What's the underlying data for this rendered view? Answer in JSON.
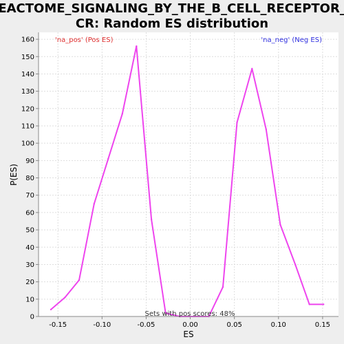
{
  "chart_data": {
    "type": "line",
    "title_lines": [
      "REACTOME_SIGNALING_BY_THE_B_CELL_RECEPTOR_B",
      "CR: Random ES distribution"
    ],
    "xlabel": "ES",
    "ylabel": "P(ES)",
    "xlim": [
      -0.172,
      0.168
    ],
    "ylim": [
      0,
      164
    ],
    "x_ticks": [
      -0.15,
      -0.1,
      -0.05,
      0.0,
      0.05,
      0.1,
      0.15
    ],
    "x_tick_labels": [
      "-0.15",
      "-0.10",
      "-0.05",
      "0.00",
      "0.05",
      "0.10",
      "0.15"
    ],
    "y_ticks": [
      0,
      10,
      20,
      30,
      40,
      50,
      60,
      70,
      80,
      90,
      100,
      110,
      120,
      130,
      140,
      150,
      160
    ],
    "grid": true,
    "legend": [
      {
        "label": "'na_pos' (Pos ES)",
        "color": "#e03030",
        "placement": "top-left"
      },
      {
        "label": "'na_neg' (Neg ES)",
        "color": "#3030e0",
        "placement": "top-right"
      }
    ],
    "annotation": "Sets with pos scores: 48%",
    "series": [
      {
        "color": "#ee44ee",
        "x": [
          -0.158,
          -0.142,
          -0.126,
          -0.109,
          -0.093,
          -0.077,
          -0.061,
          -0.044,
          -0.028,
          -0.012,
          0.004,
          0.021,
          0.037,
          0.053,
          0.07,
          0.086,
          0.102,
          0.119,
          0.135,
          0.151
        ],
        "y": [
          4,
          11,
          21,
          65,
          91,
          117,
          156,
          56,
          2,
          0,
          0,
          0,
          17,
          112,
          143,
          108,
          53,
          30,
          7,
          7
        ]
      }
    ]
  }
}
